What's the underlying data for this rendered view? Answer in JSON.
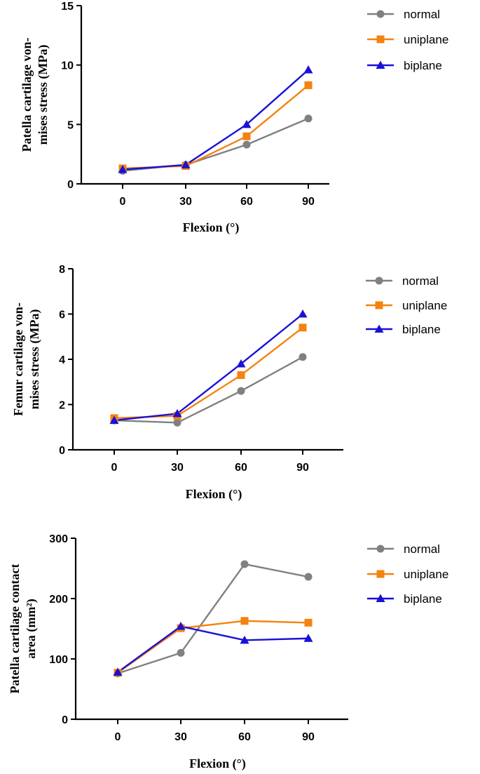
{
  "chart_data": [
    {
      "type": "line",
      "title": "",
      "xlabel": "Flexion (°)",
      "ylabel_lines": [
        "Patella cartilage von-",
        "mises stress (MPa)"
      ],
      "categories": [
        "0",
        "30",
        "60",
        "90"
      ],
      "ylim": [
        0,
        15
      ],
      "yticks": [
        0,
        5,
        10,
        15
      ],
      "series": [
        {
          "name": "normal",
          "color": "#808080",
          "marker": "circle",
          "values": [
            1.1,
            1.6,
            3.3,
            5.5
          ]
        },
        {
          "name": "uniplane",
          "color": "#f5820f",
          "marker": "square",
          "values": [
            1.3,
            1.5,
            4.0,
            8.3
          ]
        },
        {
          "name": "biplane",
          "color": "#1a10d6",
          "marker": "triangle",
          "values": [
            1.2,
            1.6,
            5.0,
            9.6
          ]
        }
      ],
      "legend_position": "top-right"
    },
    {
      "type": "line",
      "title": "",
      "xlabel": "Flexion (°)",
      "ylabel_lines": [
        "Femur cartilage von-",
        "mises stress (MPa)"
      ],
      "categories": [
        "0",
        "30",
        "60",
        "90"
      ],
      "ylim": [
        0,
        8
      ],
      "yticks": [
        0,
        2,
        4,
        6,
        8
      ],
      "series": [
        {
          "name": "normal",
          "color": "#808080",
          "marker": "circle",
          "values": [
            1.3,
            1.2,
            2.6,
            4.1
          ]
        },
        {
          "name": "uniplane",
          "color": "#f5820f",
          "marker": "square",
          "values": [
            1.4,
            1.5,
            3.3,
            5.4
          ]
        },
        {
          "name": "biplane",
          "color": "#1a10d6",
          "marker": "triangle",
          "values": [
            1.3,
            1.6,
            3.8,
            6.0
          ]
        }
      ],
      "legend_position": "top-right"
    },
    {
      "type": "line",
      "title": "",
      "xlabel": "Flexion (°)",
      "ylabel_lines": [
        "Patella cartilage contact",
        "area (mm²)"
      ],
      "categories": [
        "0",
        "30",
        "60",
        "90"
      ],
      "ylim": [
        0,
        300
      ],
      "yticks": [
        0,
        100,
        200,
        300
      ],
      "series": [
        {
          "name": "normal",
          "color": "#808080",
          "marker": "circle",
          "values": [
            76,
            110,
            257,
            236
          ]
        },
        {
          "name": "uniplane",
          "color": "#f5820f",
          "marker": "square",
          "values": [
            77,
            151,
            163,
            160
          ]
        },
        {
          "name": "biplane",
          "color": "#1a10d6",
          "marker": "triangle",
          "values": [
            78,
            154,
            131,
            134
          ]
        }
      ],
      "legend_position": "top-right"
    }
  ]
}
